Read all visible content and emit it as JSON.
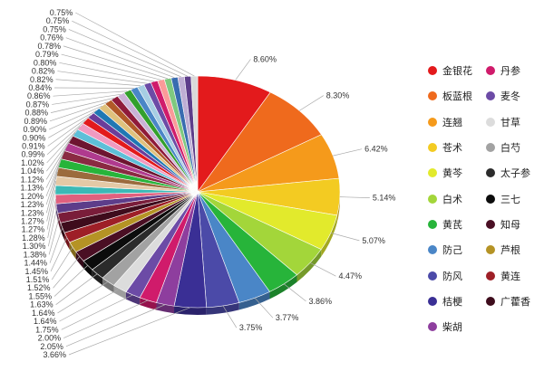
{
  "chart_data": {
    "type": "pie",
    "slices": [
      {
        "name": "金银花",
        "value": 8.6,
        "label": "8.60%",
        "color": "#e31a1c"
      },
      {
        "name": "板蓝根",
        "value": 8.3,
        "label": "8.30%",
        "color": "#ef6a1d"
      },
      {
        "name": "连翘",
        "value": 6.42,
        "label": "6.42%",
        "color": "#f59a1b"
      },
      {
        "name": "苍术",
        "value": 5.14,
        "label": "5.14%",
        "color": "#f3cb22"
      },
      {
        "name": "黄芩",
        "value": 5.07,
        "label": "5.07%",
        "color": "#e2ea2c"
      },
      {
        "name": "白术",
        "value": 4.47,
        "label": "4.47%",
        "color": "#a3d63a"
      },
      {
        "name": "黄芪",
        "value": 3.86,
        "label": "3.86%",
        "color": "#27b43a"
      },
      {
        "name": "防己",
        "value": 3.77,
        "label": "3.77%",
        "color": "#4a86c7"
      },
      {
        "name": "防风",
        "value": 3.75,
        "label": "3.75%",
        "color": "#4b4aa8"
      },
      {
        "name": "桔梗",
        "value": 3.66,
        "label": "3.66%",
        "color": "#3a2f95"
      },
      {
        "name": "柴胡",
        "value": 2.05,
        "label": "2.05%",
        "color": "#8e3e9e"
      },
      {
        "name": "丹参",
        "value": 2.0,
        "label": "2.00%",
        "color": "#d01b6b"
      },
      {
        "name": "麦冬",
        "value": 1.75,
        "label": "1.75%",
        "color": "#6c4ba6"
      },
      {
        "name": "甘草",
        "value": 1.64,
        "label": "1.64%",
        "color": "#dcdcdc"
      },
      {
        "name": "白芍",
        "value": 1.64,
        "label": "1.64%",
        "color": "#a2a2a2"
      },
      {
        "name": "太子参",
        "value": 1.63,
        "label": "1.63%",
        "color": "#2b2b2b"
      },
      {
        "name": "三七",
        "value": 1.55,
        "label": "1.55%",
        "color": "#0c0c0c"
      },
      {
        "name": "知母",
        "value": 1.52,
        "label": "1.52%",
        "color": "#4a0f24"
      },
      {
        "name": "芦根",
        "value": 1.51,
        "label": "1.51%",
        "color": "#b59325"
      },
      {
        "name": "黄连",
        "value": 1.45,
        "label": "1.45%",
        "color": "#9e1f27"
      },
      {
        "name": "广藿香",
        "value": 1.44,
        "label": "1.44%",
        "color": "#3e0c1c"
      },
      {
        "value": 1.38,
        "label": "1.38%",
        "color": "#7a1d3a"
      },
      {
        "value": 1.3,
        "label": "1.30%",
        "color": "#5d3d8a"
      },
      {
        "value": 1.28,
        "label": "1.28%",
        "color": "#e0607e"
      },
      {
        "value": 1.27,
        "label": "1.27%",
        "color": "#3bb9b6"
      },
      {
        "value": 1.27,
        "label": "1.27%",
        "color": "#e4c9a6"
      },
      {
        "value": 1.23,
        "label": "1.23%",
        "color": "#9b6b3d"
      },
      {
        "value": 1.23,
        "label": "1.23%",
        "color": "#27b43a"
      },
      {
        "value": 1.2,
        "label": "1.20%",
        "color": "#8a2a42"
      },
      {
        "value": 1.13,
        "label": "1.13%",
        "color": "#b03a8e"
      },
      {
        "value": 1.12,
        "label": "1.12%",
        "color": "#6d1530"
      },
      {
        "value": 1.04,
        "label": "1.04%",
        "color": "#5dbfd8"
      },
      {
        "value": 1.02,
        "label": "1.02%",
        "color": "#f09ac1"
      },
      {
        "value": 0.99,
        "label": "0.99%",
        "color": "#e31a1c"
      },
      {
        "value": 0.91,
        "label": "0.91%",
        "color": "#6a3d9a"
      },
      {
        "value": 0.9,
        "label": "0.90%",
        "color": "#1f78b4"
      },
      {
        "value": 0.9,
        "label": "0.90%",
        "color": "#dfc27d"
      },
      {
        "value": 0.89,
        "label": "0.89%",
        "color": "#b15928"
      },
      {
        "value": 0.88,
        "label": "0.88%",
        "color": "#8f1a3a"
      },
      {
        "value": 0.87,
        "label": "0.87%",
        "color": "#cab2d6"
      },
      {
        "value": 0.86,
        "label": "0.86%",
        "color": "#33a02c"
      },
      {
        "value": 0.84,
        "label": "0.84%",
        "color": "#4a86c7"
      },
      {
        "value": 0.82,
        "label": "0.82%",
        "color": "#a6cee3"
      },
      {
        "value": 0.82,
        "label": "0.82%",
        "color": "#6c4ba6"
      },
      {
        "value": 0.8,
        "label": "0.80%",
        "color": "#d01b6b"
      },
      {
        "value": 0.79,
        "label": "0.79%",
        "color": "#fb9a99"
      },
      {
        "value": 0.78,
        "label": "0.78%",
        "color": "#7fc97f"
      },
      {
        "value": 0.76,
        "label": "0.76%",
        "color": "#386cb0"
      },
      {
        "value": 0.75,
        "label": "0.75%",
        "color": "#beaed4"
      },
      {
        "value": 0.75,
        "label": "0.75%",
        "color": "#5d3d8a"
      },
      {
        "value": 0.75,
        "label": "0.75%",
        "color": "#d9d9d9"
      }
    ],
    "legend": {
      "position": "right",
      "items": [
        {
          "name": "金银花",
          "color": "#e31a1c"
        },
        {
          "name": "丹参",
          "color": "#d01b6b"
        },
        {
          "name": "板蓝根",
          "color": "#ef6a1d"
        },
        {
          "name": "麦冬",
          "color": "#6c4ba6"
        },
        {
          "name": "连翘",
          "color": "#f59a1b"
        },
        {
          "name": "甘草",
          "color": "#dcdcdc"
        },
        {
          "name": "苍术",
          "color": "#f3cb22"
        },
        {
          "name": "白芍",
          "color": "#a2a2a2"
        },
        {
          "name": "黄芩",
          "color": "#e2ea2c"
        },
        {
          "name": "太子参",
          "color": "#2b2b2b"
        },
        {
          "name": "白术",
          "color": "#a3d63a"
        },
        {
          "name": "三七",
          "color": "#0c0c0c"
        },
        {
          "name": "黄芪",
          "color": "#27b43a"
        },
        {
          "name": "知母",
          "color": "#4a0f24"
        },
        {
          "name": "防己",
          "color": "#4a86c7"
        },
        {
          "name": "芦根",
          "color": "#b59325"
        },
        {
          "name": "防风",
          "color": "#4b4aa8"
        },
        {
          "name": "黄连",
          "color": "#9e1f27"
        },
        {
          "name": "桔梗",
          "color": "#3a2f95"
        },
        {
          "name": "广藿香",
          "color": "#3e0c1c"
        },
        {
          "name": "柴胡",
          "color": "#8e3e9e"
        }
      ]
    }
  }
}
